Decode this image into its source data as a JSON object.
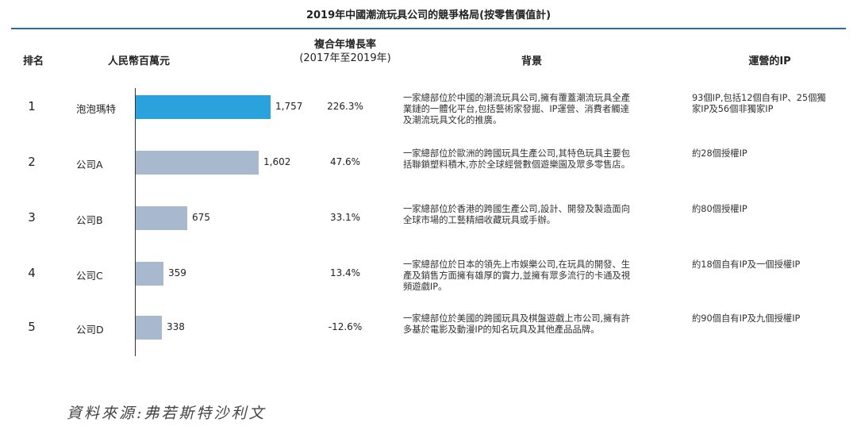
{
  "title": "2019年中國潮流玩具公司的競爭格局(按零售價值計)",
  "headers": {
    "rank": "排名",
    "rmb": "人民幣百萬元",
    "cagr_line1": "複合年增長率",
    "cagr_line2": "(2017年至2019年)",
    "background": "背景",
    "ip": "運營的IP"
  },
  "colors": {
    "highlight": "#2aa3dc",
    "bar": "#a9b9cd",
    "rule": "#2d6aa8"
  },
  "chart_data": {
    "type": "bar",
    "orientation": "horizontal",
    "categories": [
      "泡泡瑪特",
      "公司A",
      "公司B",
      "公司C",
      "公司D"
    ],
    "values": [
      1757,
      1602,
      675,
      359,
      338
    ],
    "value_labels": [
      "1,757",
      "1,602",
      "675",
      "359",
      "338"
    ],
    "xlim": [
      0,
      1757
    ],
    "title": "2019年中國潮流玩具公司的競爭格局(按零售價值計)",
    "xlabel": "人民幣百萬元"
  },
  "rows": [
    {
      "rank": "1",
      "name": "泡泡瑪特",
      "value_label": "1,757",
      "cagr": "226.3%",
      "desc": [
        "一家總部位於中國的潮流玩具公司,擁有覆蓋潮流玩具全產",
        "業鏈的一體化平台,包括藝術家發掘、IP運營、消費者觸達",
        "及潮流玩具文化的推廣。"
      ],
      "ip": [
        "93個IP,包括12個自有IP、25個獨",
        "家IP及56個非獨家IP"
      ]
    },
    {
      "rank": "2",
      "name": "公司A",
      "value_label": "1,602",
      "cagr": "47.6%",
      "desc": [
        "一家總部位於歐洲的跨國玩具生產公司,其特色玩具主要包",
        "括聯鎖塑料積木,亦於全球經營數個遊樂園及眾多零售店。"
      ],
      "ip": [
        "約28個授權IP"
      ]
    },
    {
      "rank": "3",
      "name": "公司B",
      "value_label": "675",
      "cagr": "33.1%",
      "desc": [
        "一家總部位於香港的跨國生產公司,設計、開發及製造面向",
        "全球市場的工藝精細收藏玩具或手辦。"
      ],
      "ip": [
        "約80個授權IP"
      ]
    },
    {
      "rank": "4",
      "name": "公司C",
      "value_label": "359",
      "cagr": "13.4%",
      "desc": [
        "一家總部位於日本的領先上市娛樂公司,在玩具的開發、生",
        "產及銷售方面擁有雄厚的實力,並擁有眾多流行的卡通及視",
        "頻遊戲IP。"
      ],
      "ip": [
        "約18個自有IP及一個授權IP"
      ]
    },
    {
      "rank": "5",
      "name": "公司D",
      "value_label": "338",
      "cagr": "-12.6%",
      "desc": [
        "一家總部位於美國的跨國玩具及棋盤遊戲上市公司,擁有許",
        "多基於電影及動漫IP的知名玩具及其他產品品牌。"
      ],
      "ip": [
        "約90個自有IP及九個授權IP"
      ]
    }
  ],
  "source": "資料來源:弗若斯特沙利文"
}
